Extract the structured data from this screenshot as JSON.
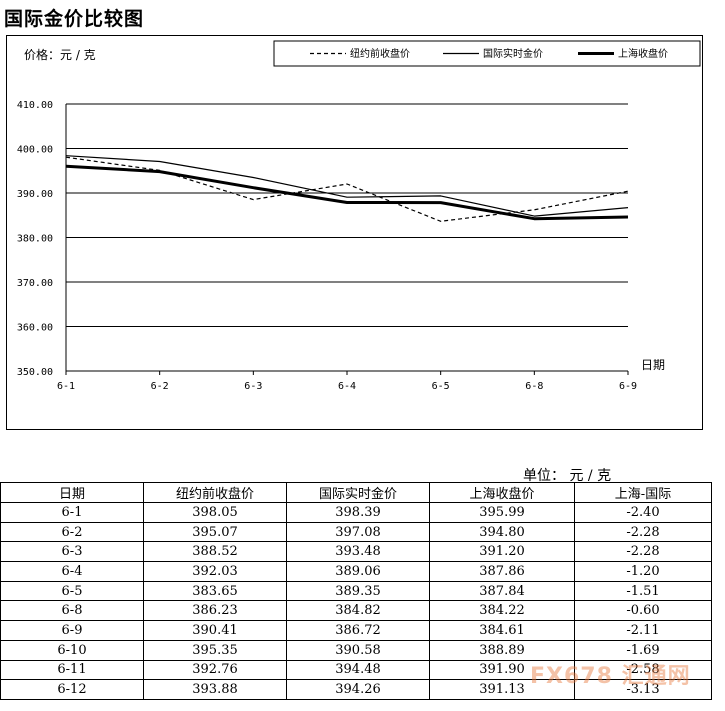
{
  "page_title": "国际金价比较图",
  "watermark": "FX678 汇通网",
  "chart_data": {
    "type": "line",
    "ylabel": "价格：元 / 克",
    "xlabel": "日期",
    "categories": [
      "6-1",
      "6-2",
      "6-3",
      "6-4",
      "6-5",
      "6-8",
      "6-9"
    ],
    "ylim": [
      350,
      410
    ],
    "yticks": [
      "350.00",
      "360.00",
      "370.00",
      "380.00",
      "390.00",
      "400.00",
      "410.00"
    ],
    "grid": true,
    "legend_position": "top-right",
    "series": [
      {
        "name": "纽约前收盘价",
        "style": "dashed",
        "values": [
          398.05,
          395.07,
          388.52,
          392.03,
          383.65,
          386.23,
          390.41
        ]
      },
      {
        "name": "国际实时金价",
        "style": "thin",
        "values": [
          398.39,
          397.08,
          393.48,
          389.06,
          389.35,
          384.82,
          386.72
        ]
      },
      {
        "name": "上海收盘价",
        "style": "thick",
        "values": [
          395.99,
          394.8,
          391.2,
          387.86,
          387.84,
          384.22,
          384.61
        ]
      }
    ]
  },
  "table": {
    "unit": "单位：  元 / 克",
    "headers": [
      "日期",
      "纽约前收盘价",
      "国际实时金价",
      "上海收盘价",
      "上海-国际"
    ],
    "rows": [
      [
        "6-1",
        "398.05",
        "398.39",
        "395.99",
        "-2.40"
      ],
      [
        "6-2",
        "395.07",
        "397.08",
        "394.80",
        "-2.28"
      ],
      [
        "6-3",
        "388.52",
        "393.48",
        "391.20",
        "-2.28"
      ],
      [
        "6-4",
        "392.03",
        "389.06",
        "387.86",
        "-1.20"
      ],
      [
        "6-5",
        "383.65",
        "389.35",
        "387.84",
        "-1.51"
      ],
      [
        "6-8",
        "386.23",
        "384.82",
        "384.22",
        "-0.60"
      ],
      [
        "6-9",
        "390.41",
        "386.72",
        "384.61",
        "-2.11"
      ],
      [
        "6-10",
        "395.35",
        "390.58",
        "388.89",
        "-1.69"
      ],
      [
        "6-11",
        "392.76",
        "394.48",
        "391.90",
        "-2.58"
      ],
      [
        "6-12",
        "393.88",
        "394.26",
        "391.13",
        "-3.13"
      ]
    ]
  }
}
